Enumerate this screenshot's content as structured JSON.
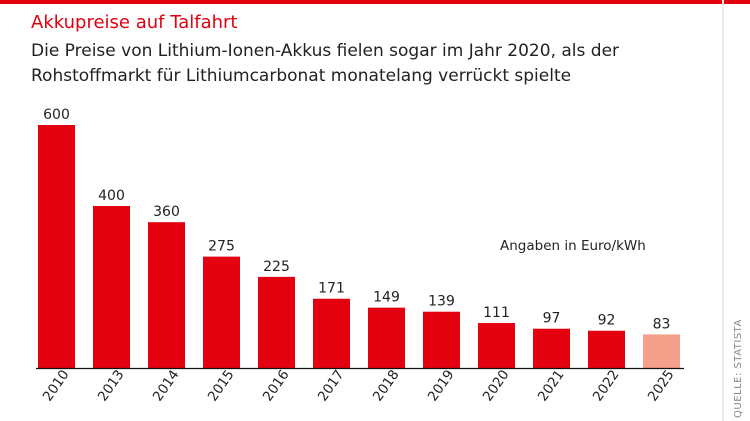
{
  "title": "Akkupreise auf Talfahrt",
  "subtitle": "Die Preise von Lithium-Ionen-Akkus fielen sogar im Jahr 2020, als der Rohstoffmarkt für Lithiumcarbonat monatelang verrückt spielte",
  "unit_note": "Angaben in Euro/kWh",
  "source": "QUELLE: STATISTA",
  "colors": {
    "accent": "#e3000f",
    "forecast": "#f4a08a",
    "text": "#222222"
  },
  "chart_data": {
    "type": "bar",
    "title": "Akkupreise auf Talfahrt",
    "xlabel": "",
    "ylabel": "",
    "ylim": [
      0,
      600
    ],
    "grid": false,
    "categories": [
      "2010",
      "2013",
      "2014",
      "2015",
      "2016",
      "2017",
      "2018",
      "2019",
      "2020",
      "2021",
      "2022",
      "2025"
    ],
    "series": [
      {
        "values": [
          600,
          400,
          360,
          275,
          225,
          171,
          149,
          139,
          111,
          97,
          92,
          83
        ]
      }
    ],
    "highlight_last_category": true
  }
}
